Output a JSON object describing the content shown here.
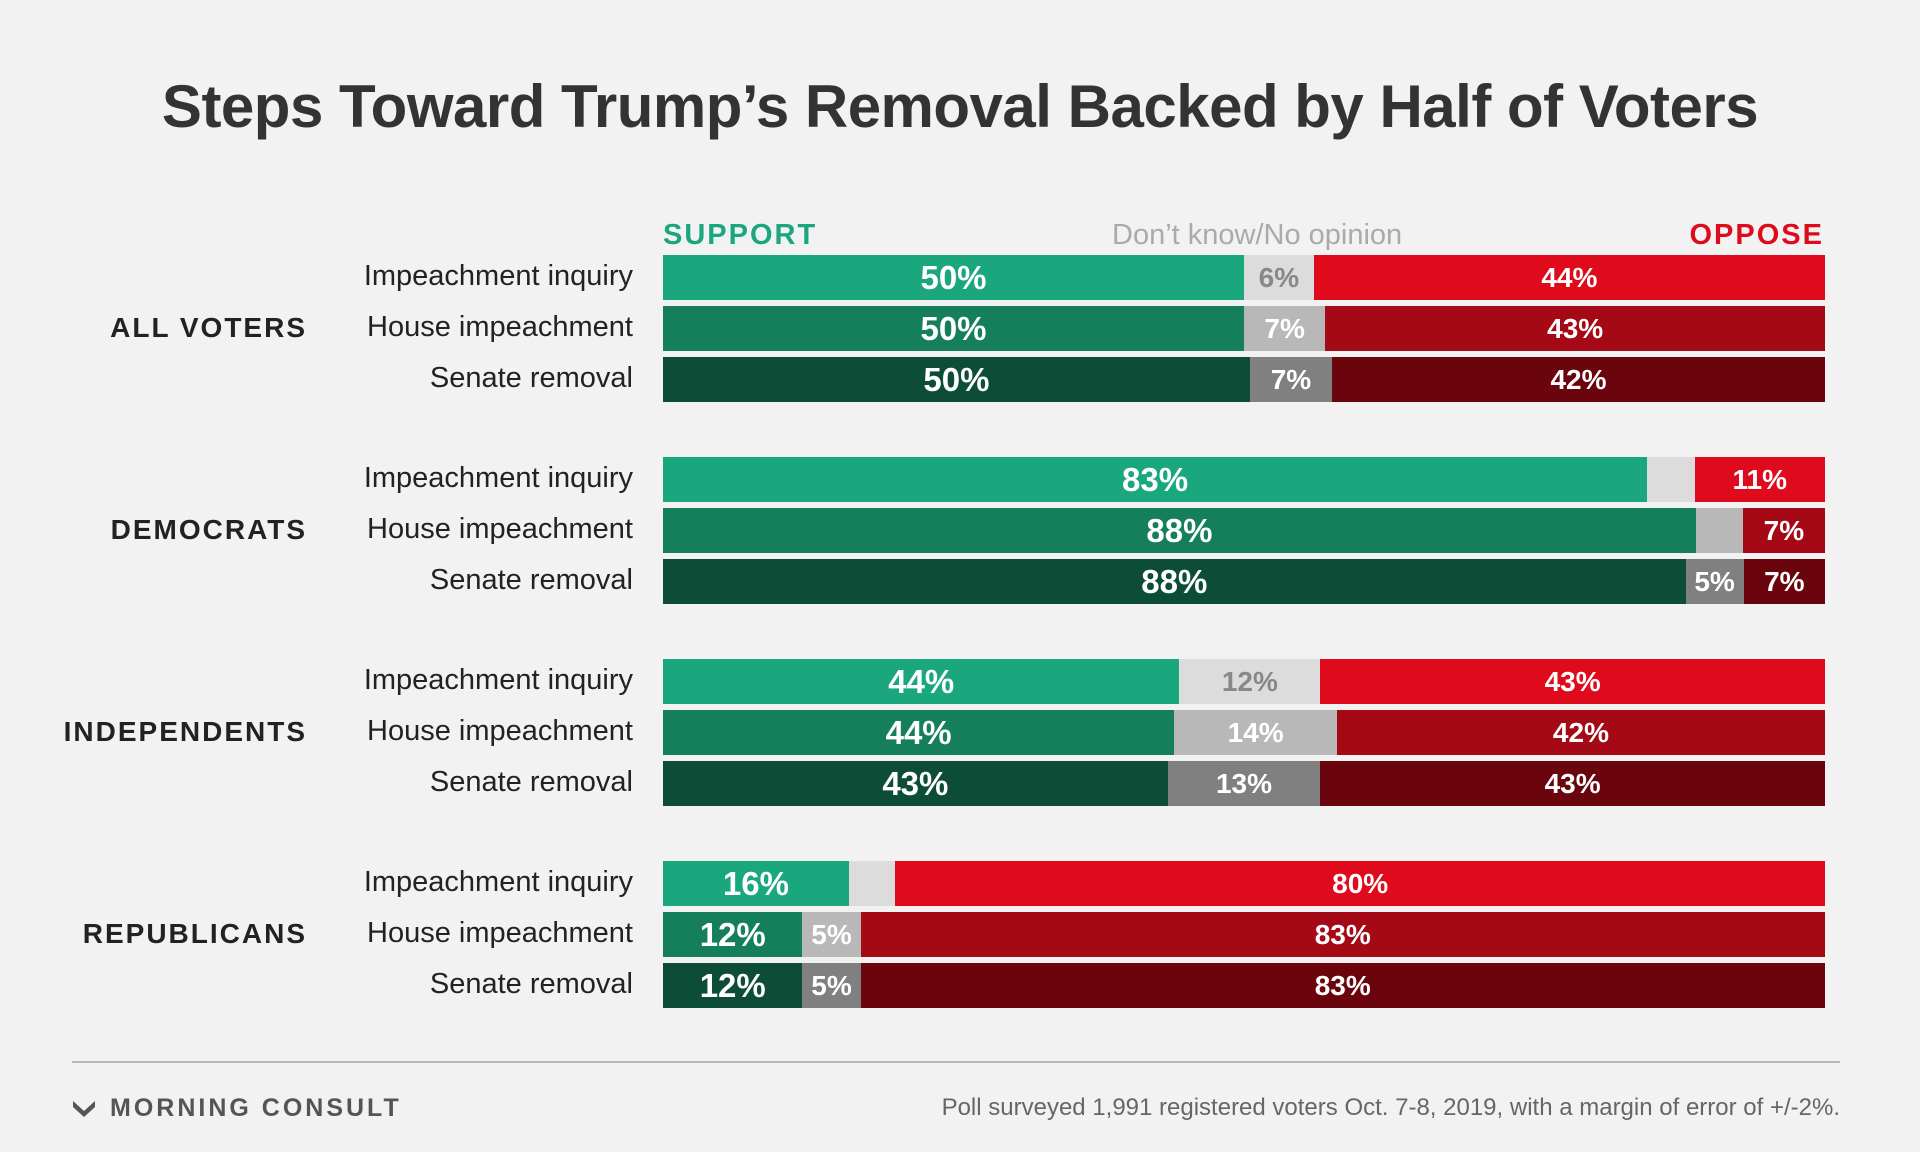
{
  "chart_data": {
    "type": "bar",
    "orientation": "horizontal",
    "stacked": true,
    "title": "Steps Toward Trump’s Removal Backed by Half of Voters",
    "headers": {
      "support": "SUPPORT",
      "neutral": "Don’t know/No opinion",
      "oppose": "OPPOSE"
    },
    "categories": [
      "Impeachment inquiry",
      "House impeachment",
      "Senate removal"
    ],
    "groups": [
      {
        "name": "ALL VOTERS",
        "rows": [
          {
            "category": "Impeachment inquiry",
            "support": 50,
            "neutral": 6,
            "oppose": 44,
            "support_label": "50%",
            "neutral_label": "6%",
            "oppose_label": "44%"
          },
          {
            "category": "House impeachment",
            "support": 50,
            "neutral": 7,
            "oppose": 43,
            "support_label": "50%",
            "neutral_label": "7%",
            "oppose_label": "43%"
          },
          {
            "category": "Senate removal",
            "support": 50,
            "neutral": 7,
            "oppose": 42,
            "support_label": "50%",
            "neutral_label": "7%",
            "oppose_label": "42%"
          }
        ]
      },
      {
        "name": "DEMOCRATS",
        "rows": [
          {
            "category": "Impeachment inquiry",
            "support": 83,
            "neutral": 4,
            "oppose": 11,
            "support_label": "83%",
            "neutral_label": "",
            "oppose_label": "11%"
          },
          {
            "category": "House impeachment",
            "support": 88,
            "neutral": 4,
            "oppose": 7,
            "support_label": "88%",
            "neutral_label": "",
            "oppose_label": "7%"
          },
          {
            "category": "Senate removal",
            "support": 88,
            "neutral": 5,
            "oppose": 7,
            "support_label": "88%",
            "neutral_label": "5%",
            "oppose_label": "7%"
          }
        ]
      },
      {
        "name": "INDEPENDENTS",
        "rows": [
          {
            "category": "Impeachment inquiry",
            "support": 44,
            "neutral": 12,
            "oppose": 43,
            "support_label": "44%",
            "neutral_label": "12%",
            "oppose_label": "43%"
          },
          {
            "category": "House impeachment",
            "support": 44,
            "neutral": 14,
            "oppose": 42,
            "support_label": "44%",
            "neutral_label": "14%",
            "oppose_label": "42%"
          },
          {
            "category": "Senate removal",
            "support": 43,
            "neutral": 13,
            "oppose": 43,
            "support_label": "43%",
            "neutral_label": "13%",
            "oppose_label": "43%"
          }
        ]
      },
      {
        "name": "REPUBLICANS",
        "rows": [
          {
            "category": "Impeachment inquiry",
            "support": 16,
            "neutral": 4,
            "oppose": 80,
            "support_label": "16%",
            "neutral_label": "",
            "oppose_label": "80%"
          },
          {
            "category": "House impeachment",
            "support": 12,
            "neutral": 5,
            "oppose": 83,
            "support_label": "12%",
            "neutral_label": "5%",
            "oppose_label": "83%"
          },
          {
            "category": "Senate removal",
            "support": 12,
            "neutral": 5,
            "oppose": 83,
            "support_label": "12%",
            "neutral_label": "5%",
            "oppose_label": "83%"
          }
        ]
      }
    ],
    "colors": {
      "support": [
        "#1ba77e",
        "#157f5b",
        "#0d4d37"
      ],
      "neutral": [
        "#dcdcdc",
        "#b8b8b8",
        "#808080"
      ],
      "oppose": [
        "#df0b1c",
        "#a50916",
        "#6b050d"
      ],
      "neutral_text": [
        "#888888",
        "#ffffff",
        "#ffffff"
      ],
      "header_support": "#1ba77e",
      "header_neutral": "#aaaaaa",
      "header_oppose": "#df0b1c"
    }
  },
  "footer": {
    "logo_text": "MORNING CONSULT",
    "note": "Poll surveyed 1,991 registered voters Oct. 7-8, 2019, with a margin of error of +/-2%."
  }
}
